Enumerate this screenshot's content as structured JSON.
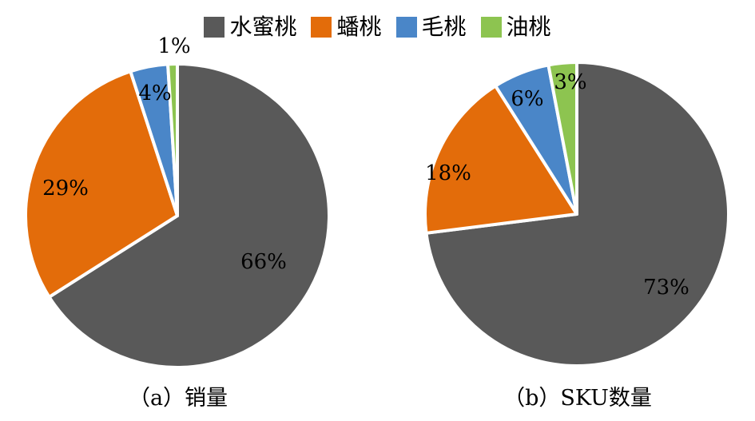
{
  "legend": {
    "placement": "top",
    "items": [
      {
        "label": "水蜜桃",
        "color": "#595959"
      },
      {
        "label": "蟠桃",
        "color": "#E36C0A"
      },
      {
        "label": "毛桃",
        "color": "#4A86C8"
      },
      {
        "label": "油桃",
        "color": "#8DC450"
      }
    ]
  },
  "chart_data": [
    {
      "type": "pie",
      "title": "（a）销量",
      "categories": [
        "水蜜桃",
        "蟠桃",
        "毛桃",
        "油桃"
      ],
      "values": [
        66,
        29,
        4,
        1
      ],
      "labels": [
        "66%",
        "29%",
        "4%",
        "1%"
      ],
      "colors": [
        "#595959",
        "#E36C0A",
        "#4A86C8",
        "#8DC450"
      ]
    },
    {
      "type": "pie",
      "title": "（b）SKU数量",
      "categories": [
        "水蜜桃",
        "蟠桃",
        "毛桃",
        "油桃"
      ],
      "values": [
        73,
        18,
        6,
        3
      ],
      "labels": [
        "73%",
        "18%",
        "6%",
        "3%"
      ],
      "colors": [
        "#595959",
        "#E36C0A",
        "#4A86C8",
        "#8DC450"
      ]
    }
  ]
}
